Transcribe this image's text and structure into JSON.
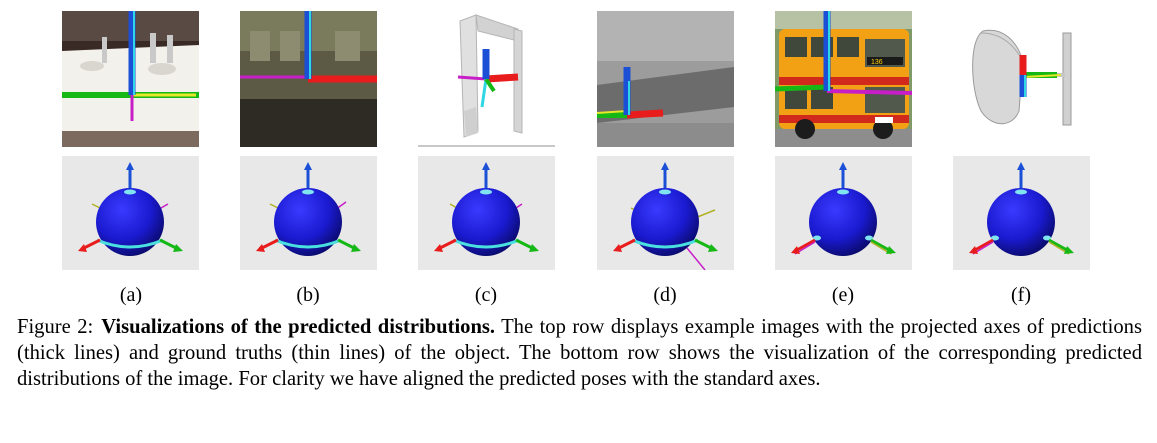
{
  "figure": {
    "panels": [
      {
        "label": "(a)"
      },
      {
        "label": "(b)"
      },
      {
        "label": "(c)"
      },
      {
        "label": "(d)"
      },
      {
        "label": "(e)"
      },
      {
        "label": "(f)"
      }
    ],
    "caption": {
      "number": "Figure 2:",
      "title": "Visualizations of the predicted distributions.",
      "body": "The top row displays example images with the projected axes of predictions (thick lines) and ground truths (thin lines) of the object. The bottom row shows the visualization of the corresponding predicted distributions of the image. For clarity we have aligned the predicted poses with the standard axes."
    },
    "bus_sign": "136",
    "colors": {
      "axis_blue": "#1a4fd6",
      "axis_cyan": "#2fd6e6",
      "axis_red": "#e81c1c",
      "axis_green": "#16b816",
      "axis_magenta": "#c81ec8",
      "sphere_blue": "#1a1ad0",
      "panel_gray": "#e8e8e8"
    }
  }
}
